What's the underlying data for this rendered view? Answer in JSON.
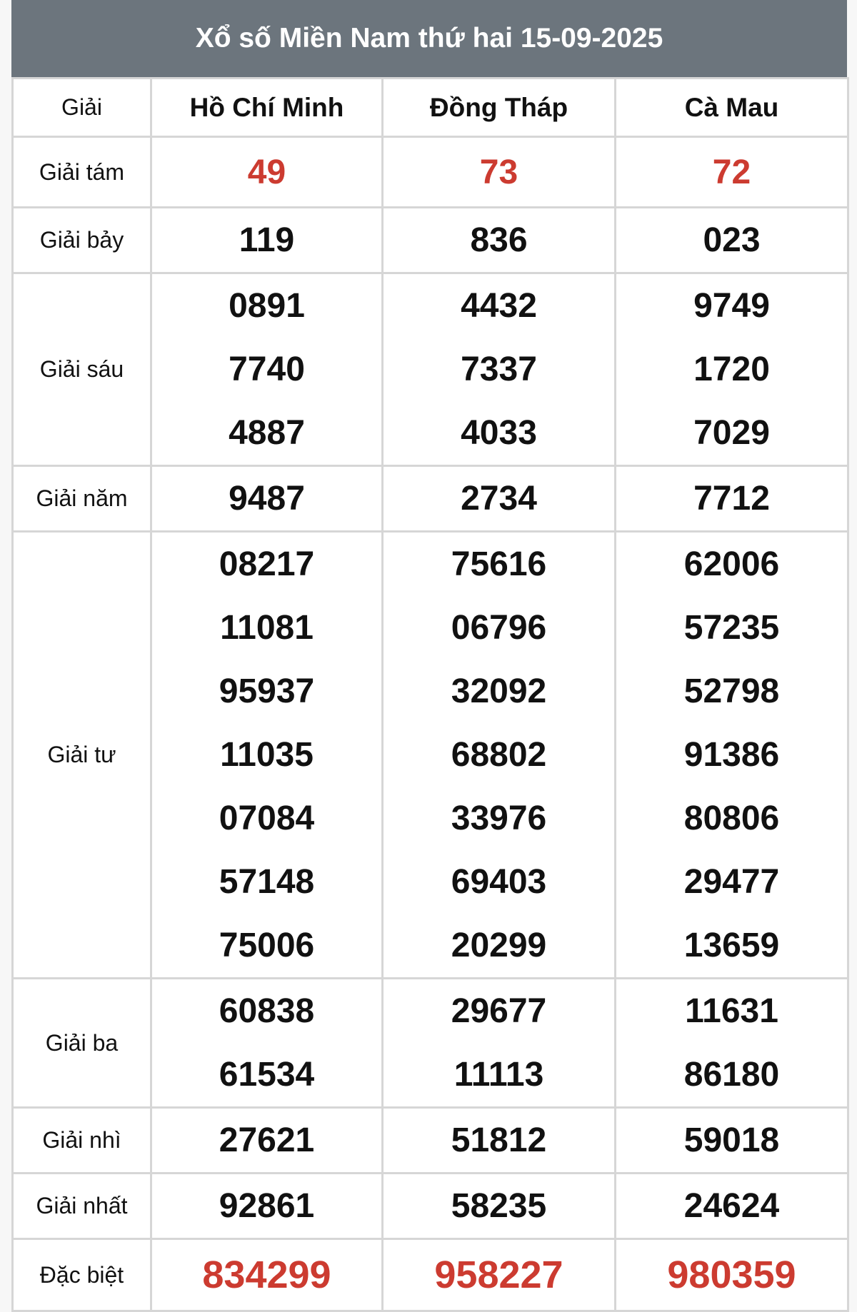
{
  "title": "Xổ số Miền Nam thứ hai 15-09-2025",
  "header": {
    "label": "Giải",
    "provinces": [
      "Hồ Chí Minh",
      "Đồng Tháp",
      "Cà Mau"
    ]
  },
  "colors": {
    "header_bg": "#6c757d",
    "highlight": "#cc3b30"
  },
  "rows": [
    {
      "label": "Giải tám",
      "highlight": true,
      "values": [
        [
          "49"
        ],
        [
          "73"
        ],
        [
          "72"
        ]
      ]
    },
    {
      "label": "Giải bảy",
      "values": [
        [
          "119"
        ],
        [
          "836"
        ],
        [
          "023"
        ]
      ]
    },
    {
      "label": "Giải sáu",
      "values": [
        [
          "0891",
          "7740",
          "4887"
        ],
        [
          "4432",
          "7337",
          "4033"
        ],
        [
          "9749",
          "1720",
          "7029"
        ]
      ]
    },
    {
      "label": "Giải năm",
      "values": [
        [
          "9487"
        ],
        [
          "2734"
        ],
        [
          "7712"
        ]
      ]
    },
    {
      "label": "Giải tư",
      "values": [
        [
          "08217",
          "11081",
          "95937",
          "11035",
          "07084",
          "57148",
          "75006"
        ],
        [
          "75616",
          "06796",
          "32092",
          "68802",
          "33976",
          "69403",
          "20299"
        ],
        [
          "62006",
          "57235",
          "52798",
          "91386",
          "80806",
          "29477",
          "13659"
        ]
      ]
    },
    {
      "label": "Giải ba",
      "values": [
        [
          "60838",
          "61534"
        ],
        [
          "29677",
          "11113"
        ],
        [
          "11631",
          "86180"
        ]
      ]
    },
    {
      "label": "Giải nhì",
      "values": [
        [
          "27621"
        ],
        [
          "51812"
        ],
        [
          "59018"
        ]
      ]
    },
    {
      "label": "Giải nhất",
      "values": [
        [
          "92861"
        ],
        [
          "58235"
        ],
        [
          "24624"
        ]
      ]
    },
    {
      "label": "Đặc biệt",
      "highlight": true,
      "big": true,
      "values": [
        [
          "834299"
        ],
        [
          "958227"
        ],
        [
          "980359"
        ]
      ]
    }
  ]
}
